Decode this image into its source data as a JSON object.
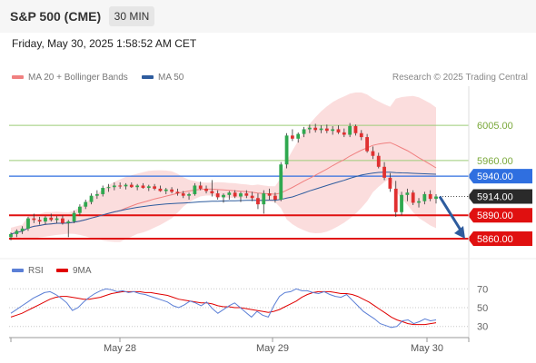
{
  "header": {
    "symbol": "S&P 500 (CME)",
    "interval": "30 MIN",
    "datetime": "Friday, May 30, 2025 1:58:52 AM CET"
  },
  "legend": {
    "items": [
      {
        "label": "MA 20 + Bollinger Bands",
        "color": "#f08080"
      },
      {
        "label": "MA 50",
        "color": "#2e5c9e"
      }
    ],
    "credit": "Research © 2025 Trading Central"
  },
  "rsi_legend": {
    "items": [
      {
        "label": "RSI",
        "color": "#5b7fd6"
      },
      {
        "label": "9MA",
        "color": "#e00000"
      }
    ]
  },
  "colors": {
    "up": "#2fa84f",
    "down": "#e03030",
    "resistance_line": "#9ccc78",
    "resistance_label": "#7aa83a",
    "pivot": "#2f6fe0",
    "support": "#e01010",
    "last_price_bg": "#2a2a2a",
    "projection_arrow": "#2e5c9e",
    "bollinger_fill": "#fad2d2"
  },
  "chart_data": [
    {
      "type": "candlestick",
      "title": "S&P 500 (CME) 30 MIN",
      "y_range": [
        5838,
        6040
      ],
      "x_tick_labels": [
        "May 28",
        "May 29",
        "May 30"
      ],
      "candles": [
        {
          "o": 5862,
          "h": 5868,
          "l": 5858,
          "c": 5866
        },
        {
          "o": 5866,
          "h": 5872,
          "l": 5862,
          "c": 5870
        },
        {
          "o": 5870,
          "h": 5876,
          "l": 5866,
          "c": 5873
        },
        {
          "o": 5873,
          "h": 5888,
          "l": 5870,
          "c": 5886
        },
        {
          "o": 5886,
          "h": 5892,
          "l": 5880,
          "c": 5884
        },
        {
          "o": 5884,
          "h": 5888,
          "l": 5878,
          "c": 5882
        },
        {
          "o": 5882,
          "h": 5889,
          "l": 5878,
          "c": 5887
        },
        {
          "o": 5887,
          "h": 5892,
          "l": 5882,
          "c": 5884
        },
        {
          "o": 5884,
          "h": 5889,
          "l": 5880,
          "c": 5886
        },
        {
          "o": 5886,
          "h": 5890,
          "l": 5878,
          "c": 5880
        },
        {
          "o": 5880,
          "h": 5884,
          "l": 5862,
          "c": 5882
        },
        {
          "o": 5882,
          "h": 5896,
          "l": 5880,
          "c": 5893
        },
        {
          "o": 5893,
          "h": 5904,
          "l": 5890,
          "c": 5901
        },
        {
          "o": 5901,
          "h": 5910,
          "l": 5898,
          "c": 5907
        },
        {
          "o": 5907,
          "h": 5918,
          "l": 5904,
          "c": 5915
        },
        {
          "o": 5915,
          "h": 5922,
          "l": 5911,
          "c": 5917
        },
        {
          "o": 5917,
          "h": 5928,
          "l": 5914,
          "c": 5925
        },
        {
          "o": 5925,
          "h": 5930,
          "l": 5920,
          "c": 5926
        },
        {
          "o": 5926,
          "h": 5932,
          "l": 5922,
          "c": 5928
        },
        {
          "o": 5928,
          "h": 5932,
          "l": 5924,
          "c": 5927
        },
        {
          "o": 5927,
          "h": 5931,
          "l": 5923,
          "c": 5929
        },
        {
          "o": 5929,
          "h": 5932,
          "l": 5925,
          "c": 5926
        },
        {
          "o": 5926,
          "h": 5930,
          "l": 5922,
          "c": 5928
        },
        {
          "o": 5928,
          "h": 5931,
          "l": 5924,
          "c": 5925
        },
        {
          "o": 5925,
          "h": 5929,
          "l": 5921,
          "c": 5927
        },
        {
          "o": 5927,
          "h": 5930,
          "l": 5922,
          "c": 5924
        },
        {
          "o": 5924,
          "h": 5928,
          "l": 5920,
          "c": 5921
        },
        {
          "o": 5921,
          "h": 5925,
          "l": 5917,
          "c": 5923
        },
        {
          "o": 5923,
          "h": 5926,
          "l": 5918,
          "c": 5920
        },
        {
          "o": 5920,
          "h": 5924,
          "l": 5915,
          "c": 5918
        },
        {
          "o": 5918,
          "h": 5921,
          "l": 5912,
          "c": 5915
        },
        {
          "o": 5915,
          "h": 5919,
          "l": 5910,
          "c": 5917
        },
        {
          "o": 5917,
          "h": 5931,
          "l": 5915,
          "c": 5928
        },
        {
          "o": 5928,
          "h": 5933,
          "l": 5922,
          "c": 5924
        },
        {
          "o": 5924,
          "h": 5928,
          "l": 5918,
          "c": 5921
        },
        {
          "o": 5921,
          "h": 5935,
          "l": 5914,
          "c": 5918
        },
        {
          "o": 5918,
          "h": 5922,
          "l": 5910,
          "c": 5913
        },
        {
          "o": 5913,
          "h": 5918,
          "l": 5906,
          "c": 5916
        },
        {
          "o": 5916,
          "h": 5921,
          "l": 5910,
          "c": 5919
        },
        {
          "o": 5919,
          "h": 5922,
          "l": 5912,
          "c": 5914
        },
        {
          "o": 5914,
          "h": 5920,
          "l": 5907,
          "c": 5918
        },
        {
          "o": 5918,
          "h": 5922,
          "l": 5912,
          "c": 5915
        },
        {
          "o": 5915,
          "h": 5920,
          "l": 5908,
          "c": 5912
        },
        {
          "o": 5912,
          "h": 5918,
          "l": 5898,
          "c": 5904
        },
        {
          "o": 5904,
          "h": 5922,
          "l": 5892,
          "c": 5918
        },
        {
          "o": 5918,
          "h": 5924,
          "l": 5910,
          "c": 5915
        },
        {
          "o": 5915,
          "h": 5919,
          "l": 5906,
          "c": 5910
        },
        {
          "o": 5910,
          "h": 5958,
          "l": 5908,
          "c": 5955
        },
        {
          "o": 5955,
          "h": 5995,
          "l": 5950,
          "c": 5992
        },
        {
          "o": 5992,
          "h": 6000,
          "l": 5985,
          "c": 5988
        },
        {
          "o": 5988,
          "h": 5996,
          "l": 5983,
          "c": 5994
        },
        {
          "o": 5994,
          "h": 6003,
          "l": 5990,
          "c": 6000
        },
        {
          "o": 6000,
          "h": 6006,
          "l": 5995,
          "c": 6002
        },
        {
          "o": 6002,
          "h": 6007,
          "l": 5996,
          "c": 5999
        },
        {
          "o": 5999,
          "h": 6005,
          "l": 5995,
          "c": 6001
        },
        {
          "o": 6001,
          "h": 6006,
          "l": 5995,
          "c": 5998
        },
        {
          "o": 5998,
          "h": 6004,
          "l": 5993,
          "c": 6000
        },
        {
          "o": 6000,
          "h": 6005,
          "l": 5994,
          "c": 5996
        },
        {
          "o": 5996,
          "h": 6001,
          "l": 5990,
          "c": 5993
        },
        {
          "o": 5993,
          "h": 6008,
          "l": 5990,
          "c": 6004
        },
        {
          "o": 6004,
          "h": 6006,
          "l": 5992,
          "c": 5995
        },
        {
          "o": 5995,
          "h": 5999,
          "l": 5986,
          "c": 5990
        },
        {
          "o": 5990,
          "h": 5994,
          "l": 5970,
          "c": 5972
        },
        {
          "o": 5972,
          "h": 5978,
          "l": 5962,
          "c": 5966
        },
        {
          "o": 5966,
          "h": 5970,
          "l": 5950,
          "c": 5952
        },
        {
          "o": 5952,
          "h": 5958,
          "l": 5935,
          "c": 5938
        },
        {
          "o": 5938,
          "h": 5944,
          "l": 5920,
          "c": 5924
        },
        {
          "o": 5924,
          "h": 5934,
          "l": 5888,
          "c": 5894
        },
        {
          "o": 5894,
          "h": 5920,
          "l": 5890,
          "c": 5916
        },
        {
          "o": 5916,
          "h": 5924,
          "l": 5908,
          "c": 5919
        },
        {
          "o": 5919,
          "h": 5922,
          "l": 5903,
          "c": 5906
        },
        {
          "o": 5906,
          "h": 5912,
          "l": 5900,
          "c": 5908
        },
        {
          "o": 5908,
          "h": 5920,
          "l": 5904,
          "c": 5917
        },
        {
          "o": 5917,
          "h": 5922,
          "l": 5908,
          "c": 5911
        },
        {
          "o": 5911,
          "h": 5917,
          "l": 5905,
          "c": 5914
        }
      ],
      "levels": [
        {
          "label": "6005.00",
          "value": 6005,
          "role": "resistance"
        },
        {
          "label": "5960.00",
          "value": 5960,
          "role": "resistance"
        },
        {
          "label": "5940.00",
          "value": 5940,
          "role": "pivot"
        },
        {
          "label": "5914.00",
          "value": 5914,
          "role": "last"
        },
        {
          "label": "5890.00",
          "value": 5890,
          "role": "support"
        },
        {
          "label": "5860.00",
          "value": 5860,
          "role": "support"
        }
      ],
      "projection": {
        "from": 5914,
        "to": 5860
      }
    },
    {
      "type": "line",
      "y_range": [
        22,
        78
      ],
      "y_tick_labels": [
        "70",
        "50",
        "30"
      ],
      "y_ticks": [
        70,
        50,
        30
      ],
      "series": [
        {
          "name": "RSI",
          "values": [
            44,
            48,
            52,
            56,
            60,
            63,
            66,
            67,
            64,
            60,
            55,
            47,
            50,
            56,
            61,
            65,
            68,
            70,
            69,
            67,
            68,
            66,
            67,
            65,
            64,
            62,
            60,
            58,
            56,
            52,
            50,
            53,
            57,
            55,
            52,
            56,
            49,
            44,
            48,
            52,
            55,
            50,
            45,
            40,
            46,
            42,
            40,
            52,
            62,
            66,
            67,
            70,
            68,
            68,
            66,
            65,
            67,
            64,
            62,
            61,
            64,
            58,
            52,
            46,
            42,
            38,
            33,
            31,
            29,
            30,
            36,
            37,
            33,
            35,
            38,
            36,
            37
          ]
        },
        {
          "name": "9MA",
          "values": [
            40,
            42,
            44,
            47,
            50,
            53,
            56,
            59,
            61,
            62,
            62,
            61,
            60,
            59,
            59,
            60,
            61,
            63,
            65,
            66,
            67,
            67,
            67,
            67,
            66,
            66,
            65,
            64,
            63,
            61,
            59,
            58,
            57,
            56,
            55,
            55,
            54,
            52,
            51,
            51,
            50,
            50,
            49,
            48,
            47,
            46,
            45,
            46,
            48,
            51,
            54,
            57,
            61,
            64,
            66,
            67,
            67,
            67,
            66,
            65,
            65,
            64,
            62,
            59,
            56,
            52,
            48,
            44,
            40,
            37,
            35,
            33,
            32,
            32,
            32,
            33,
            34
          ]
        }
      ]
    }
  ]
}
